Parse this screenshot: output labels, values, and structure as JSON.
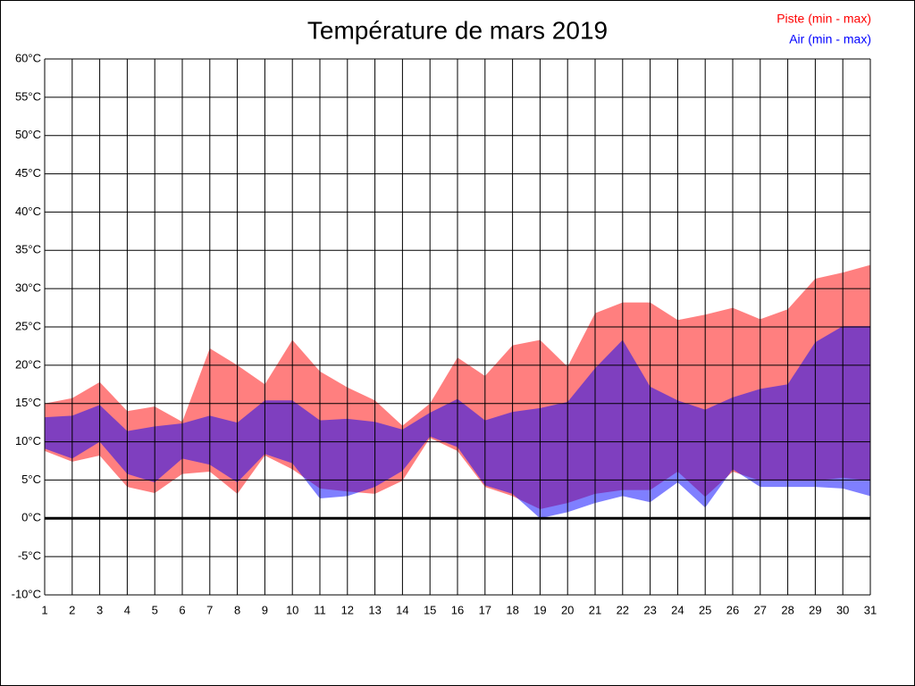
{
  "chart_data": {
    "type": "range_area",
    "title": "Température de mars 2019",
    "categories": [
      "1",
      "2",
      "3",
      "4",
      "5",
      "6",
      "7",
      "8",
      "9",
      "10",
      "11",
      "12",
      "13",
      "14",
      "15",
      "16",
      "17",
      "18",
      "19",
      "20",
      "21",
      "22",
      "23",
      "24",
      "25",
      "26",
      "27",
      "28",
      "29",
      "30",
      "31"
    ],
    "series": [
      {
        "name": "Piste (min - max)",
        "color": "#ff0000",
        "min": [
          8.8,
          7.4,
          8.2,
          4.1,
          3.3,
          5.8,
          6.1,
          3.2,
          8.2,
          6.4,
          3.9,
          3.5,
          3.2,
          4.9,
          10.5,
          8.8,
          4.1,
          2.9,
          1.2,
          2,
          3.2,
          3.7,
          3.7,
          6.1,
          2.8,
          6.1,
          4.9,
          4.9,
          4.9,
          5.3,
          4.9
        ],
        "max": [
          15,
          15.7,
          17.8,
          14,
          14.6,
          12.6,
          22.2,
          20,
          17.5,
          23.3,
          19.2,
          17.1,
          15.4,
          12.1,
          15,
          21,
          18.6,
          22.6,
          23.3,
          19.8,
          26.8,
          28.2,
          28.2,
          25.9,
          26.6,
          27.5,
          26,
          27.3,
          31.3,
          32.1,
          33.1
        ]
      },
      {
        "name": "Air (min - max)",
        "color": "#0000ff",
        "min": [
          9.1,
          7.8,
          10,
          5.8,
          4.7,
          7.8,
          7,
          4.7,
          8.4,
          7.2,
          2.6,
          2.9,
          4.1,
          6.2,
          10.7,
          9.3,
          4.3,
          3.2,
          0,
          0.8,
          2,
          2.9,
          2.1,
          4.7,
          1.4,
          6.4,
          4.1,
          4.1,
          4.1,
          3.9,
          2.9
        ],
        "max": [
          13.2,
          13.4,
          14.8,
          11.4,
          12,
          12.4,
          13.4,
          12.5,
          15.4,
          15.4,
          12.8,
          13,
          12.6,
          11.6,
          13.8,
          15.6,
          12.8,
          13.9,
          14.4,
          15.2,
          19.6,
          23.3,
          17.2,
          15.4,
          14.2,
          15.8,
          16.9,
          17.5,
          23,
          25.1,
          25.1
        ]
      }
    ],
    "ylim": [
      -10,
      60
    ],
    "yticks": [
      {
        "value": -10,
        "label": "-10°C"
      },
      {
        "value": -5,
        "label": "-5°C"
      },
      {
        "value": 0,
        "label": "0°C"
      },
      {
        "value": 5,
        "label": "5°C"
      },
      {
        "value": 10,
        "label": "10°C"
      },
      {
        "value": 15,
        "label": "15°C"
      },
      {
        "value": 20,
        "label": "20°C"
      },
      {
        "value": 25,
        "label": "25°C"
      },
      {
        "value": 30,
        "label": "30°C"
      },
      {
        "value": 35,
        "label": "35°C"
      },
      {
        "value": 40,
        "label": "40°C"
      },
      {
        "value": 45,
        "label": "45°C"
      },
      {
        "value": 50,
        "label": "50°C"
      },
      {
        "value": 55,
        "label": "55°C"
      },
      {
        "value": 60,
        "label": "60°C"
      }
    ],
    "grid": true,
    "legend": "top-right"
  }
}
